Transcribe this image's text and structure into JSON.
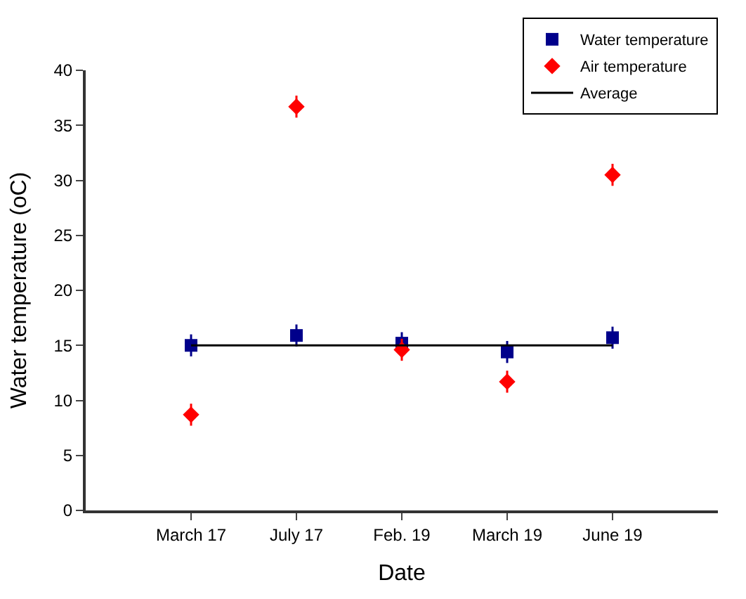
{
  "chart_data": {
    "type": "scatter",
    "xlabel": "Date",
    "ylabel": "Water temperature (oC)",
    "categories": [
      "March 17",
      "July 17",
      "Feb. 19",
      "March 19",
      "June 19"
    ],
    "series": [
      {
        "name": "Water temperature",
        "color": "#00008b",
        "marker": "square",
        "values": [
          15.0,
          15.9,
          15.2,
          14.4,
          15.7
        ],
        "errors": [
          1,
          1,
          1,
          1,
          1
        ]
      },
      {
        "name": "Air temperature",
        "color": "#ff0000",
        "marker": "diamond",
        "values": [
          8.7,
          36.7,
          14.6,
          11.7,
          30.5
        ],
        "errors": [
          1,
          1,
          1,
          1,
          1
        ]
      },
      {
        "name": "Average",
        "type": "line",
        "color": "#000000",
        "line_style": "solid",
        "marker": "none",
        "values": [
          15,
          15,
          15,
          15,
          15
        ]
      }
    ],
    "ylim": [
      0,
      40
    ],
    "yticks": [
      0,
      5,
      10,
      15,
      20,
      25,
      30,
      35,
      40
    ],
    "legend": "top right"
  }
}
